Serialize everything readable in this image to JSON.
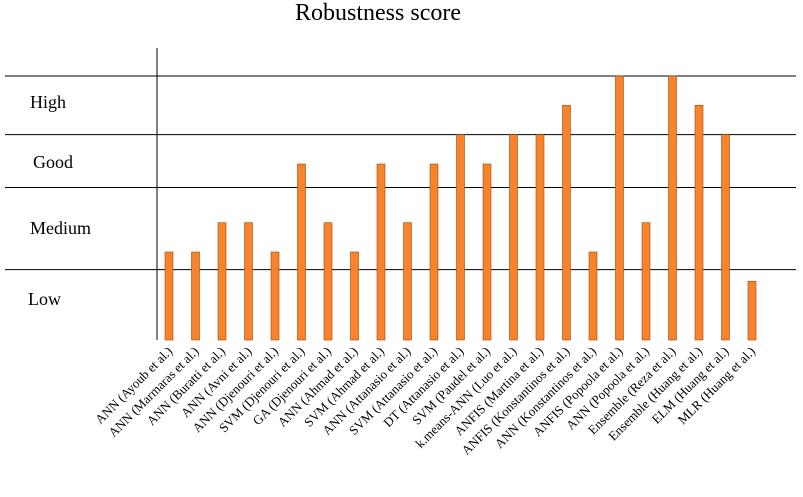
{
  "chart_data": {
    "type": "bar",
    "title": "Robustness score",
    "xlabel": "",
    "ylabel": "",
    "bar_color": "#F7842B",
    "bar_edge_color": "#9a4a10",
    "levels": [
      "Low",
      "Medium",
      "Good",
      "High"
    ],
    "ylim": [
      0,
      9
    ],
    "level_boundaries": [
      2.4,
      5.2,
      7,
      9
    ],
    "categories": [
      "ANN (Ayoub et al.)",
      "ANN (Marmaras et al.)",
      "ANN (Buratti et al.)",
      "ANN (Avni et al.)",
      "ANN (Djenouri et al.)",
      "SVM (Djenouri et al.)",
      "GA (Djenouri et al.)",
      "ANN (Ahmad et al.)",
      "SVM (Ahmad et al.)",
      "ANN (Attanasio et al.)",
      "SVM (Attanasio et al.)",
      "DT (Attanasio et al.)",
      "SVM (Paudel et al.)",
      "k.means-ANN (Luo et al.)",
      "ANFIS (Martina et al.)",
      "ANFIS (Konstantinos et al.)",
      "ANN (Konstantinos et al.)",
      "ANFIS (Popoola et al.)",
      "ANN (Popoola et al.)",
      "Ensemble (Reza et al.)",
      "Ensemble (Huang et al.)",
      "ELM (Huang et al.)",
      "MLR (Huang et al.)"
    ],
    "values": [
      3,
      3,
      4,
      4,
      3,
      6,
      4,
      3,
      6,
      4,
      6,
      7,
      6,
      7,
      7,
      8,
      3,
      9,
      4,
      9,
      8,
      7,
      2
    ]
  }
}
